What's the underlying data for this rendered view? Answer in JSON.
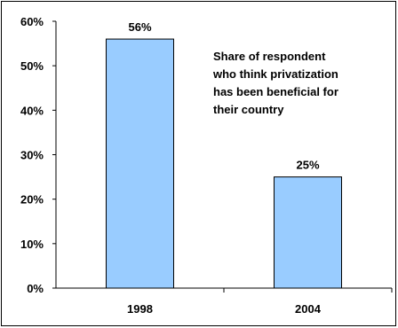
{
  "chart_data": {
    "type": "bar",
    "categories": [
      "1998",
      "2004"
    ],
    "values": [
      56,
      25
    ],
    "data_labels": [
      "56%",
      "25%"
    ],
    "ylim": [
      0,
      60
    ],
    "yticks": [
      0,
      10,
      20,
      30,
      40,
      50,
      60
    ],
    "ytick_labels": [
      "0%",
      "10%",
      "20%",
      "30%",
      "40%",
      "50%",
      "60%"
    ],
    "annotation_lines": [
      "Share of respondent",
      "who think privatization",
      "has been beneficial for",
      "their country"
    ],
    "bar_color": "#99CCFF",
    "bar_edge_color": "#000000",
    "grid": false,
    "legend": "none"
  }
}
